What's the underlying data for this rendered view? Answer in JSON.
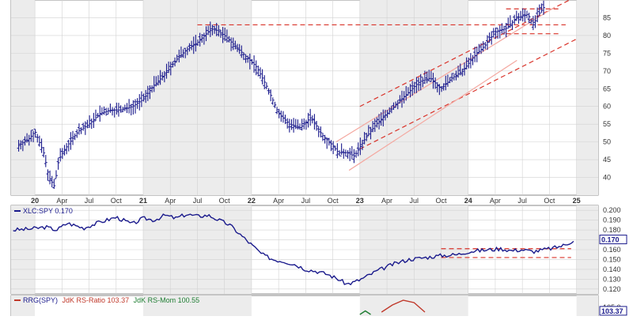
{
  "chart_data": [
    {
      "type": "ohlc",
      "panel": "price",
      "x_ticks": [
        "20",
        "Apr",
        "Jul",
        "Oct",
        "21",
        "Apr",
        "Jul",
        "Oct",
        "22",
        "Apr",
        "Jul",
        "Oct",
        "23",
        "Apr",
        "Jul",
        "Oct",
        "24",
        "Apr",
        "Jul",
        "Oct",
        "25"
      ],
      "y_ticks": [
        40,
        45,
        50,
        55,
        60,
        65,
        70,
        75,
        80,
        85
      ],
      "ylim": [
        35,
        90
      ],
      "xlim": [
        2019.78,
        2025.2
      ],
      "grid": true,
      "series": [
        {
          "x": [
            2019.85,
            2019.95,
            2020.0,
            2020.08,
            2020.13,
            2020.18,
            2020.22,
            2020.3,
            2020.4,
            2020.5,
            2020.6,
            2020.7,
            2020.8,
            2020.9,
            2021.0,
            2021.1,
            2021.2,
            2021.3,
            2021.4,
            2021.5,
            2021.6,
            2021.65,
            2021.75,
            2021.85,
            2021.95,
            2022.05,
            2022.15,
            2022.25,
            2022.35,
            2022.45,
            2022.55,
            2022.65,
            2022.75,
            2022.8,
            2022.88,
            2022.95,
            2023.05,
            2023.15,
            2023.25,
            2023.35,
            2023.45,
            2023.55,
            2023.65,
            2023.75,
            2023.85,
            2023.95,
            2024.05,
            2024.15,
            2024.25,
            2024.35,
            2024.45,
            2024.55,
            2024.6,
            2024.65,
            2024.7
          ],
          "y": [
            49,
            51,
            53,
            47,
            40,
            37.5,
            45,
            49,
            53,
            55,
            58,
            59,
            59,
            60,
            62,
            66,
            69,
            73,
            76,
            78,
            81,
            82,
            80,
            77,
            74,
            71,
            65,
            58,
            55,
            54,
            57,
            52,
            49,
            47,
            47,
            46,
            51,
            55,
            58,
            61,
            64,
            67,
            68,
            65,
            68,
            70,
            74,
            77,
            81,
            82,
            85,
            86,
            83,
            86,
            88
          ]
        }
      ],
      "trendlines": [
        {
          "style": "dashed",
          "color": "#d9342b",
          "points": [
            [
              2021.5,
              83
            ],
            [
              2024.9,
              83
            ]
          ]
        },
        {
          "style": "dashed",
          "color": "#d9342b",
          "points": [
            [
              2023.0,
              60
            ],
            [
              2025.0,
              91
            ]
          ]
        },
        {
          "style": "dashed",
          "color": "#d9342b",
          "points": [
            [
              2023.0,
              48
            ],
            [
              2025.0,
              79
            ]
          ]
        },
        {
          "style": "solid",
          "color": "#f4a8a0",
          "points": [
            [
              2022.78,
              50
            ],
            [
              2024.8,
              88
            ]
          ]
        },
        {
          "style": "solid",
          "color": "#f4a8a0",
          "points": [
            [
              2022.9,
              42
            ],
            [
              2024.45,
              73
            ]
          ]
        },
        {
          "style": "dashed",
          "color": "#d9342b",
          "points": [
            [
              2024.35,
              87.5
            ],
            [
              2024.85,
              87.5
            ]
          ]
        },
        {
          "style": "dashed",
          "color": "#d9342b",
          "points": [
            [
              2024.35,
              80.5
            ],
            [
              2024.85,
              80.5
            ]
          ]
        }
      ]
    },
    {
      "type": "line",
      "panel": "relative-strength",
      "legend": "XLC:SPY 0.170",
      "y_ticks": [
        0.12,
        0.13,
        0.14,
        0.15,
        0.16,
        0.17,
        0.18,
        0.19,
        0.2
      ],
      "y_tick_labels": [
        "0.120",
        "0.130",
        "0.140",
        "0.150",
        "0.160",
        "0.170",
        "0.180",
        "0.190",
        "0.200"
      ],
      "last_value": "0.170",
      "ylim": [
        0.115,
        0.205
      ],
      "series": [
        {
          "name": "XLC:SPY",
          "x": [
            2019.8,
            2019.95,
            2020.1,
            2020.2,
            2020.3,
            2020.45,
            2020.6,
            2020.75,
            2020.9,
            2021.0,
            2021.1,
            2021.2,
            2021.3,
            2021.4,
            2021.5,
            2021.6,
            2021.7,
            2021.8,
            2021.9,
            2022.0,
            2022.1,
            2022.2,
            2022.3,
            2022.4,
            2022.5,
            2022.6,
            2022.7,
            2022.8,
            2022.88,
            2022.95,
            2023.05,
            2023.15,
            2023.3,
            2023.45,
            2023.6,
            2023.75,
            2023.9,
            2024.0,
            2024.1,
            2024.2,
            2024.3,
            2024.4,
            2024.5,
            2024.6,
            2024.7,
            2024.8,
            2024.9,
            2024.98
          ],
          "y": [
            0.18,
            0.181,
            0.183,
            0.18,
            0.187,
            0.182,
            0.188,
            0.193,
            0.186,
            0.192,
            0.19,
            0.195,
            0.192,
            0.196,
            0.194,
            0.195,
            0.19,
            0.185,
            0.175,
            0.165,
            0.155,
            0.15,
            0.148,
            0.145,
            0.14,
            0.138,
            0.135,
            0.13,
            0.125,
            0.127,
            0.132,
            0.138,
            0.145,
            0.15,
            0.152,
            0.154,
            0.155,
            0.158,
            0.159,
            0.16,
            0.161,
            0.159,
            0.16,
            0.158,
            0.16,
            0.162,
            0.165,
            0.17
          ]
        }
      ],
      "trendlines": [
        {
          "style": "dashed",
          "color": "#d9342b",
          "points": [
            [
              2023.75,
              0.161
            ],
            [
              2024.95,
              0.161
            ]
          ]
        },
        {
          "style": "dashed",
          "color": "#d9342b",
          "points": [
            [
              2023.75,
              0.152
            ],
            [
              2024.95,
              0.152
            ]
          ]
        }
      ]
    },
    {
      "type": "line",
      "panel": "rrg",
      "legend_parts": [
        "RRG(SPY)",
        "JdK RS-Ratio 103.37",
        "JdK RS-Mom 100.55"
      ],
      "y_ticks": [
        105.0
      ],
      "y_tick_labels": [
        "105.0"
      ],
      "last_value": "103.37",
      "ylim": [
        100,
        110
      ],
      "series": [
        {
          "name": "JdK RS-Ratio",
          "x": [
            2023.2,
            2023.3,
            2023.4,
            2023.5,
            2023.6
          ],
          "y": [
            103,
            106,
            108,
            107,
            103
          ]
        },
        {
          "name": "JdK RS-Mom",
          "x": [
            2023.0,
            2023.05,
            2023.1
          ],
          "y": [
            102,
            103.5,
            102
          ]
        }
      ]
    }
  ]
}
